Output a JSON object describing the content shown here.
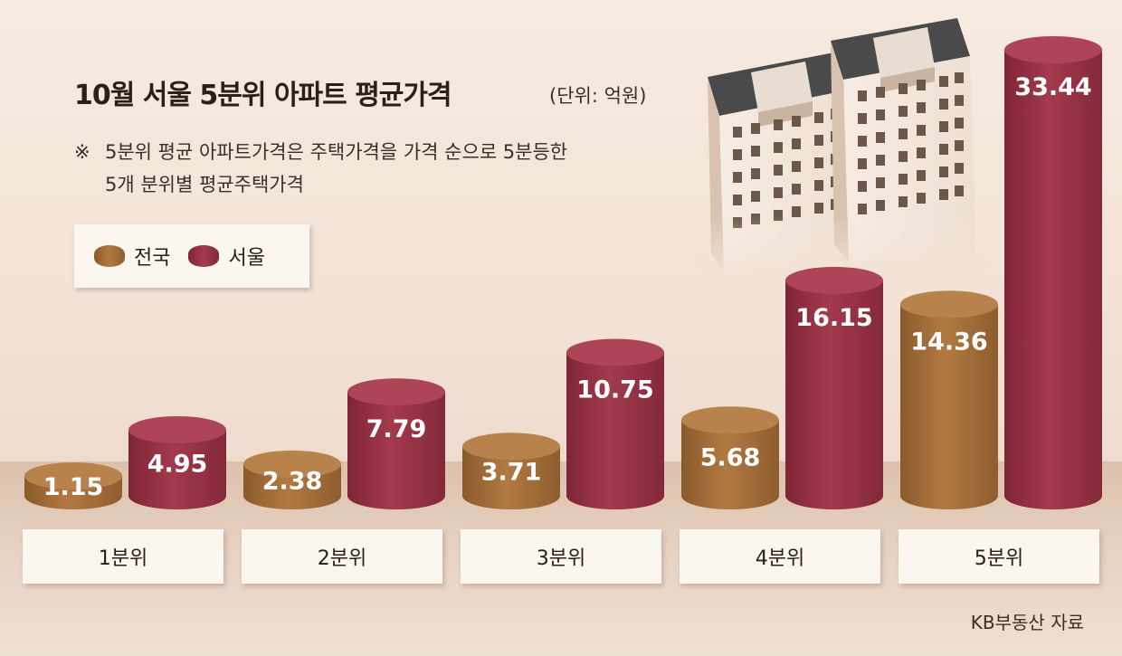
{
  "title": "10월 서울 5분위 아파트 평균가격",
  "unit": "(단위: 억원)",
  "note": {
    "mark": "※",
    "line1": "5분위 평균 아파트가격은 주택가격을 가격 순으로 5분등한",
    "line2": "5개 분위별 평균주택가격"
  },
  "legend": [
    {
      "label": "전국",
      "color": "#a8703a"
    },
    {
      "label": "서울",
      "color": "#9c3446"
    }
  ],
  "source": "KB부동산 자료",
  "chart_data": {
    "type": "bar",
    "categories": [
      "1분위",
      "2분위",
      "3분위",
      "4분위",
      "5분위"
    ],
    "series": [
      {
        "name": "전국",
        "values": [
          1.15,
          2.38,
          3.71,
          5.68,
          14.36
        ],
        "labels": [
          "1.15",
          "2.38",
          "3.71",
          "5.68",
          "14.36"
        ],
        "color": "#a8703a"
      },
      {
        "name": "서울",
        "values": [
          4.95,
          7.79,
          10.75,
          16.15,
          33.44
        ],
        "labels": [
          "4.95",
          "7.79",
          "10.75",
          "16.15",
          "33.44"
        ],
        "color": "#9c3446"
      }
    ],
    "ylim": [
      0,
      33.44
    ],
    "grid": false,
    "legend_position": "top-left"
  }
}
